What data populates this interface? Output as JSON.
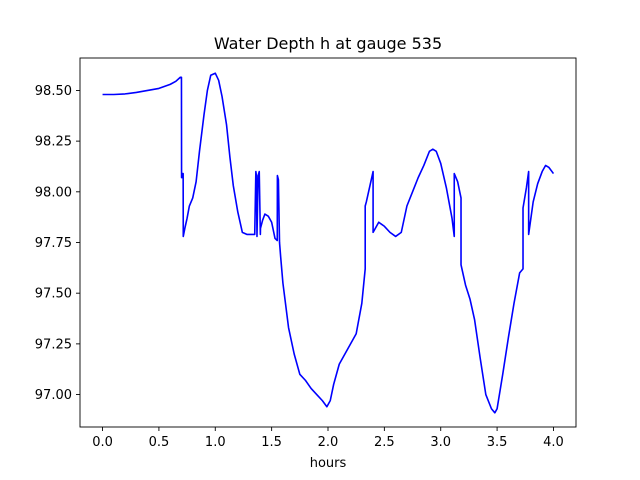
{
  "chart_data": {
    "type": "line",
    "title": "Water Depth h at gauge 535",
    "xlabel": "hours",
    "ylabel": "",
    "xlim": [
      -0.2,
      4.2
    ],
    "ylim": [
      96.84,
      98.66
    ],
    "x_ticks": [
      0.0,
      0.5,
      1.0,
      1.5,
      2.0,
      2.5,
      3.0,
      3.5,
      4.0
    ],
    "x_tick_labels": [
      "0.0",
      "0.5",
      "1.0",
      "1.5",
      "2.0",
      "2.5",
      "3.0",
      "3.5",
      "4.0"
    ],
    "y_ticks": [
      97.0,
      97.25,
      97.5,
      97.75,
      98.0,
      98.25,
      98.5
    ],
    "y_tick_labels": [
      "97.00",
      "97.25",
      "97.50",
      "97.75",
      "98.00",
      "98.25",
      "98.50"
    ],
    "grid": false,
    "series": [
      {
        "color": "#0000ff",
        "x": [
          0.0,
          0.1,
          0.2,
          0.3,
          0.4,
          0.5,
          0.55,
          0.6,
          0.65,
          0.69,
          0.7,
          0.701,
          0.705,
          0.706,
          0.715,
          0.716,
          0.73,
          0.75,
          0.77,
          0.8,
          0.83,
          0.86,
          0.9,
          0.93,
          0.96,
          1.0,
          1.03,
          1.06,
          1.1,
          1.13,
          1.16,
          1.2,
          1.24,
          1.28,
          1.32,
          1.35,
          1.36,
          1.365,
          1.37,
          1.38,
          1.39,
          1.4,
          1.401,
          1.42,
          1.44,
          1.47,
          1.5,
          1.53,
          1.55,
          1.551,
          1.56,
          1.57,
          1.58,
          1.6,
          1.65,
          1.7,
          1.75,
          1.8,
          1.85,
          1.9,
          1.95,
          1.99,
          2.02,
          2.05,
          2.1,
          2.15,
          2.2,
          2.25,
          2.3,
          2.33,
          2.33,
          2.34,
          2.4,
          2.4,
          2.45,
          2.5,
          2.55,
          2.6,
          2.65,
          2.7,
          2.75,
          2.8,
          2.85,
          2.9,
          2.93,
          2.96,
          3.0,
          3.05,
          3.1,
          3.12,
          3.12,
          3.15,
          3.18,
          3.18,
          3.22,
          3.26,
          3.3,
          3.35,
          3.4,
          3.45,
          3.48,
          3.5,
          3.55,
          3.6,
          3.65,
          3.7,
          3.73,
          3.73,
          3.76,
          3.78,
          3.78,
          3.82,
          3.86,
          3.9,
          3.93,
          3.96,
          4.0
        ],
        "y": [
          98.48,
          98.48,
          98.483,
          98.49,
          98.5,
          98.51,
          98.52,
          98.53,
          98.545,
          98.565,
          98.565,
          98.07,
          98.07,
          98.09,
          98.09,
          97.78,
          97.82,
          97.87,
          97.93,
          97.97,
          98.05,
          98.2,
          98.38,
          98.5,
          98.575,
          98.585,
          98.55,
          98.47,
          98.33,
          98.17,
          98.03,
          97.9,
          97.8,
          97.79,
          97.79,
          97.79,
          98.1,
          98.08,
          97.78,
          98.08,
          98.1,
          97.79,
          97.82,
          97.86,
          97.89,
          97.88,
          97.85,
          97.77,
          97.76,
          98.08,
          98.06,
          97.75,
          97.68,
          97.55,
          97.33,
          97.2,
          97.1,
          97.07,
          97.03,
          97.0,
          96.97,
          96.94,
          96.97,
          97.05,
          97.15,
          97.2,
          97.25,
          97.3,
          97.45,
          97.62,
          97.93,
          97.95,
          98.1,
          97.8,
          97.85,
          97.83,
          97.8,
          97.78,
          97.8,
          97.93,
          98.0,
          98.07,
          98.13,
          98.2,
          98.21,
          98.2,
          98.14,
          98.02,
          97.87,
          97.78,
          98.09,
          98.05,
          97.97,
          97.64,
          97.54,
          97.47,
          97.37,
          97.18,
          97.0,
          96.93,
          96.91,
          96.93,
          97.1,
          97.28,
          97.45,
          97.6,
          97.62,
          97.92,
          98.02,
          98.1,
          97.79,
          97.95,
          98.04,
          98.1,
          98.13,
          98.12,
          98.09
        ]
      }
    ]
  }
}
